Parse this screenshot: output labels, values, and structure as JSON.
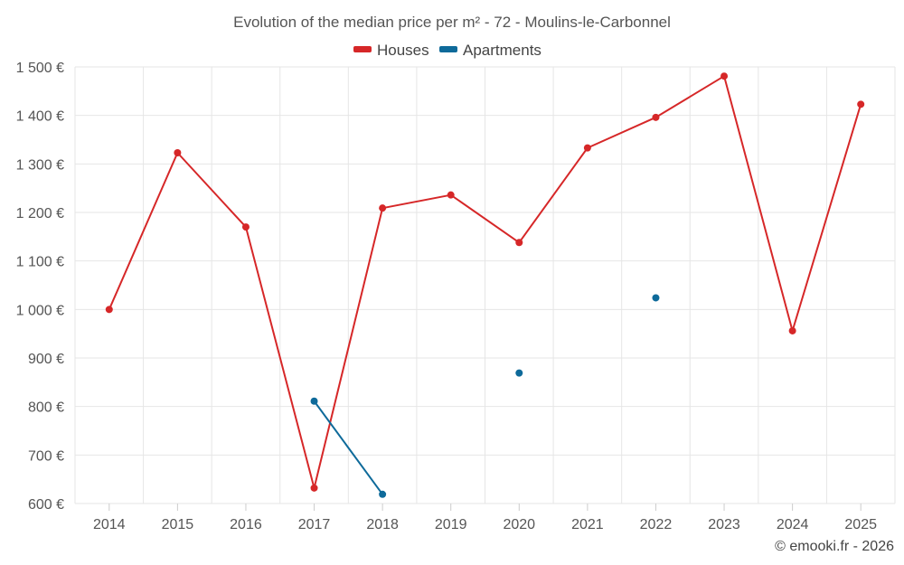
{
  "chart_data": {
    "type": "line",
    "title": "Evolution of the median price per m² - 72 - Moulins-le-Carbonnel",
    "categories": [
      "2014",
      "2015",
      "2016",
      "2017",
      "2018",
      "2019",
      "2020",
      "2021",
      "2022",
      "2023",
      "2024",
      "2025"
    ],
    "ylim": [
      600,
      1500
    ],
    "yticks": [
      600,
      700,
      800,
      900,
      1000,
      1100,
      1200,
      1300,
      1400,
      1500
    ],
    "ytick_labels": [
      "600 €",
      "700 €",
      "800 €",
      "900 €",
      "1 000 €",
      "1 100 €",
      "1 200 €",
      "1 300 €",
      "1 400 €",
      "1 500 €"
    ],
    "grid": true,
    "legend_position": "top-center",
    "series": [
      {
        "name": "Houses",
        "color": "#d62728",
        "values": [
          1000,
          1323,
          1170,
          632,
          1209,
          1236,
          1138,
          1333,
          1396,
          1481,
          956,
          1423
        ]
      },
      {
        "name": "Apartments",
        "color": "#0e6a9a",
        "values": [
          null,
          null,
          null,
          811,
          619,
          null,
          869,
          null,
          1024,
          null,
          null,
          null
        ]
      }
    ]
  },
  "credit": "© emooki.fr - 2026"
}
